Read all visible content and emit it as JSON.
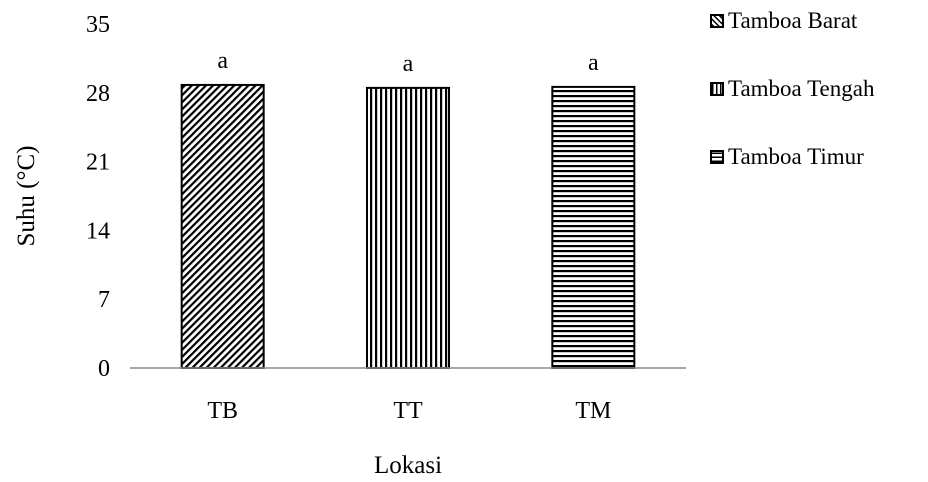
{
  "chart_data": {
    "type": "bar",
    "categories": [
      "TB",
      "TT",
      "TM"
    ],
    "values": [
      28.8,
      28.5,
      28.6
    ],
    "labels": [
      "a",
      "a",
      "a"
    ],
    "ylabel": "Suhu (°C)",
    "xlabel": "Lokasi",
    "ylim": [
      0,
      35
    ],
    "yticks": [
      "0",
      "7",
      "14",
      "21",
      "28",
      "35"
    ],
    "grid": false,
    "legend_position": "right",
    "legend": [
      {
        "name": "Tamboa Barat",
        "pattern": "diagonal"
      },
      {
        "name": "Tamboa Tengah",
        "pattern": "vertical"
      },
      {
        "name": "Tamboa Timur",
        "pattern": "horizontal"
      }
    ],
    "bar_patterns": [
      "diagonal",
      "vertical",
      "horizontal"
    ],
    "colors": {
      "ink": "#000000",
      "background": "#ffffff"
    }
  }
}
